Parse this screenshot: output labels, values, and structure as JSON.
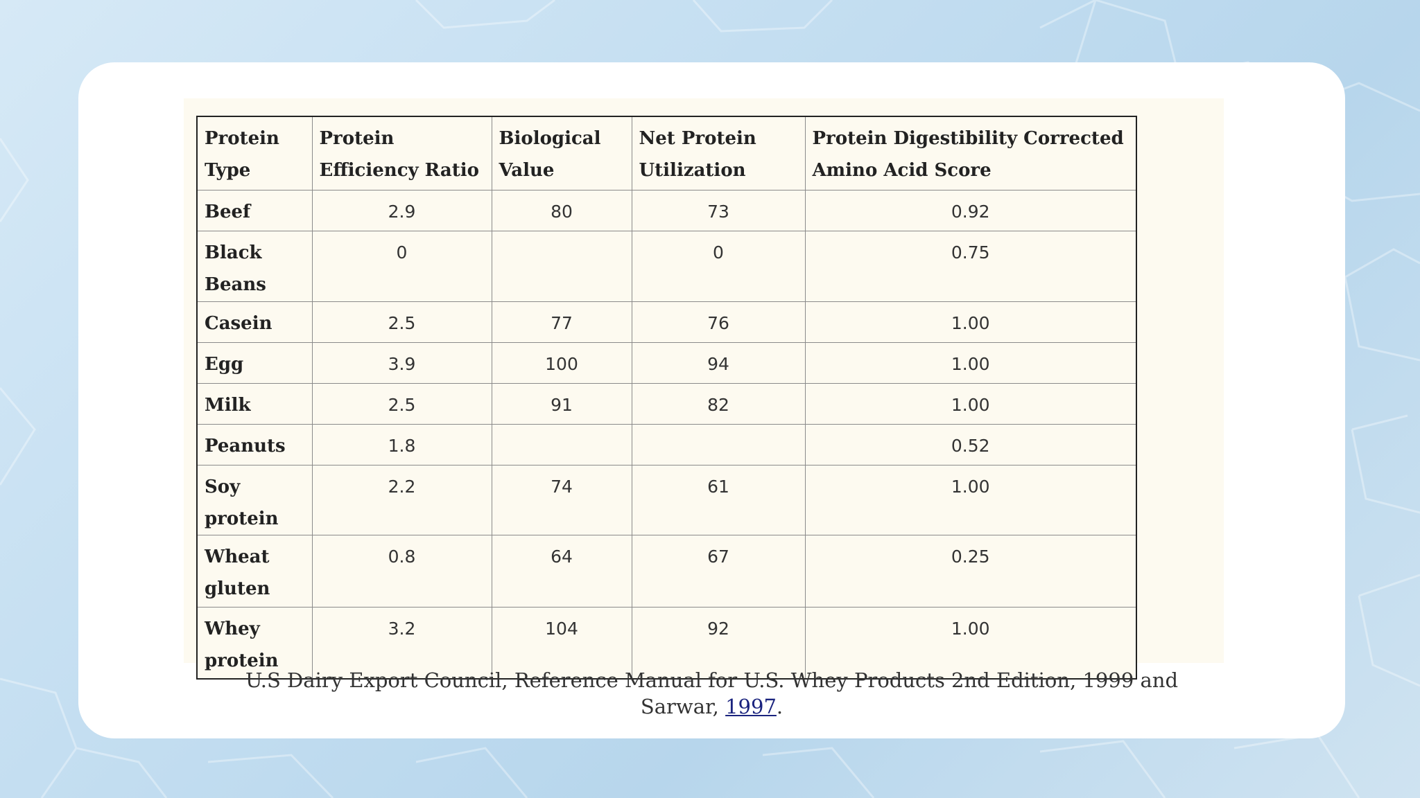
{
  "table": {
    "headers": [
      "Protein Type",
      "Protein Efficiency Ratio",
      "Biological Value",
      "Net Protein Utilization",
      "Protein Digestibility Corrected Amino Acid Score"
    ],
    "rows": [
      [
        "Beef",
        "2.9",
        "80",
        "73",
        "0.92"
      ],
      [
        "Black Beans",
        "0",
        "",
        "0",
        "0.75"
      ],
      [
        "Casein",
        "2.5",
        "77",
        "76",
        "1.00"
      ],
      [
        "Egg",
        "3.9",
        "100",
        "94",
        "1.00"
      ],
      [
        "Milk",
        "2.5",
        "91",
        "82",
        "1.00"
      ],
      [
        "Peanuts",
        "1.8",
        "",
        "",
        "0.52"
      ],
      [
        "Soy protein",
        "2.2",
        "74",
        "61",
        "1.00"
      ],
      [
        "Wheat gluten",
        "0.8",
        "64",
        "67",
        "0.25"
      ],
      [
        "Whey protein",
        "3.2",
        "104",
        "92",
        "1.00"
      ]
    ]
  },
  "caption": {
    "line1": "U.S Dairy Export Council, Reference Manual for U.S. Whey Products 2nd Edition, 1999 and",
    "line2_prefix": "Sarwar, ",
    "link_text": "1997",
    "line2_suffix": "."
  },
  "colors": {
    "card": "#ffffff",
    "table_background": "#fdfaf0",
    "link": "#1a237e"
  }
}
